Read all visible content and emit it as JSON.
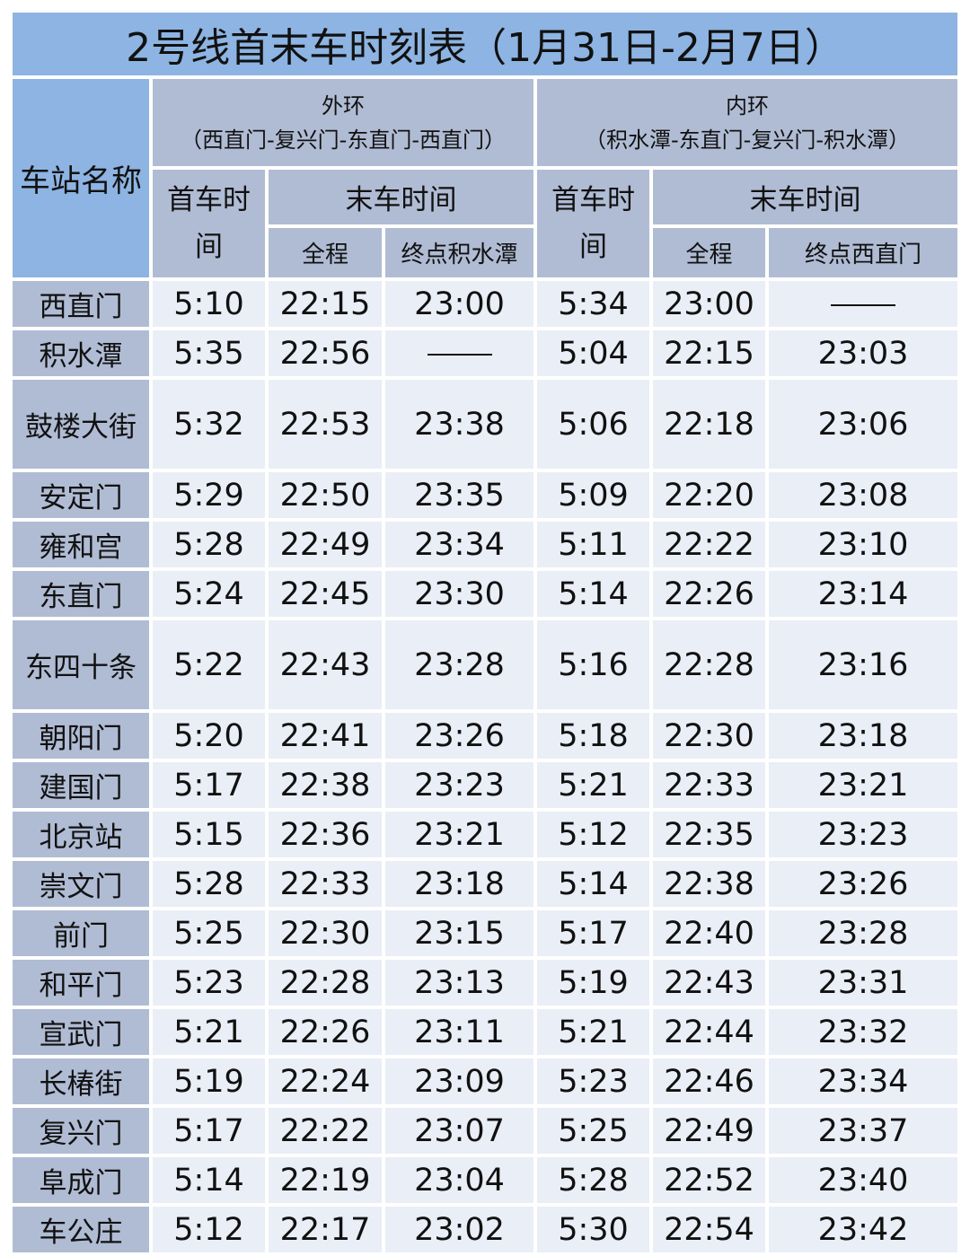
{
  "title": "2号线首末车时刻表（1月31日-2月7日）",
  "header": {
    "station_col": "车站名称",
    "outer": {
      "name": "外环",
      "route": "（西直门-复兴门-东直门-西直门）",
      "first": "首车时间",
      "last": "末车时间",
      "full": "全程",
      "terminal": "终点积水潭"
    },
    "inner": {
      "name": "内环",
      "route": "（积水潭-东直门-复兴门-积水潭）",
      "first": "首车时间",
      "last": "末车时间",
      "full": "全程",
      "terminal": "终点西直门"
    }
  },
  "rows": [
    {
      "station": "西直门",
      "o_first": "5:10",
      "o_full": "22:15",
      "o_term": "23:00",
      "i_first": "5:34",
      "i_full": "23:00",
      "i_term": "——",
      "tall": false
    },
    {
      "station": "积水潭",
      "o_first": "5:35",
      "o_full": "22:56",
      "o_term": "——",
      "i_first": "5:04",
      "i_full": "22:15",
      "i_term": "23:03",
      "tall": false
    },
    {
      "station": "鼓楼大街",
      "o_first": "5:32",
      "o_full": "22:53",
      "o_term": "23:38",
      "i_first": "5:06",
      "i_full": "22:18",
      "i_term": "23:06",
      "tall": true
    },
    {
      "station": "安定门",
      "o_first": "5:29",
      "o_full": "22:50",
      "o_term": "23:35",
      "i_first": "5:09",
      "i_full": "22:20",
      "i_term": "23:08",
      "tall": false
    },
    {
      "station": "雍和宫",
      "o_first": "5:28",
      "o_full": "22:49",
      "o_term": "23:34",
      "i_first": "5:11",
      "i_full": "22:22",
      "i_term": "23:10",
      "tall": false
    },
    {
      "station": "东直门",
      "o_first": "5:24",
      "o_full": "22:45",
      "o_term": "23:30",
      "i_first": "5:14",
      "i_full": "22:26",
      "i_term": "23:14",
      "tall": false
    },
    {
      "station": "东四十条",
      "o_first": "5:22",
      "o_full": "22:43",
      "o_term": "23:28",
      "i_first": "5:16",
      "i_full": "22:28",
      "i_term": "23:16",
      "tall": true
    },
    {
      "station": "朝阳门",
      "o_first": "5:20",
      "o_full": "22:41",
      "o_term": "23:26",
      "i_first": "5:18",
      "i_full": "22:30",
      "i_term": "23:18",
      "tall": false
    },
    {
      "station": "建国门",
      "o_first": "5:17",
      "o_full": "22:38",
      "o_term": "23:23",
      "i_first": "5:21",
      "i_full": "22:33",
      "i_term": "23:21",
      "tall": false
    },
    {
      "station": "北京站",
      "o_first": "5:15",
      "o_full": "22:36",
      "o_term": "23:21",
      "i_first": "5:12",
      "i_full": "22:35",
      "i_term": "23:23",
      "tall": false
    },
    {
      "station": "崇文门",
      "o_first": "5:28",
      "o_full": "22:33",
      "o_term": "23:18",
      "i_first": "5:14",
      "i_full": "22:38",
      "i_term": "23:26",
      "tall": false
    },
    {
      "station": "前门",
      "o_first": "5:25",
      "o_full": "22:30",
      "o_term": "23:15",
      "i_first": "5:17",
      "i_full": "22:40",
      "i_term": "23:28",
      "tall": false
    },
    {
      "station": "和平门",
      "o_first": "5:23",
      "o_full": "22:28",
      "o_term": "23:13",
      "i_first": "5:19",
      "i_full": "22:43",
      "i_term": "23:31",
      "tall": false
    },
    {
      "station": "宣武门",
      "o_first": "5:21",
      "o_full": "22:26",
      "o_term": "23:11",
      "i_first": "5:21",
      "i_full": "22:44",
      "i_term": "23:32",
      "tall": false
    },
    {
      "station": "长椿街",
      "o_first": "5:19",
      "o_full": "22:24",
      "o_term": "23:09",
      "i_first": "5:23",
      "i_full": "22:46",
      "i_term": "23:34",
      "tall": false
    },
    {
      "station": "复兴门",
      "o_first": "5:17",
      "o_full": "22:22",
      "o_term": "23:07",
      "i_first": "5:25",
      "i_full": "22:49",
      "i_term": "23:37",
      "tall": false
    },
    {
      "station": "阜成门",
      "o_first": "5:14",
      "o_full": "22:19",
      "o_term": "23:04",
      "i_first": "5:28",
      "i_full": "22:52",
      "i_term": "23:40",
      "tall": false
    },
    {
      "station": "车公庄",
      "o_first": "5:12",
      "o_full": "22:17",
      "o_term": "23:02",
      "i_first": "5:30",
      "i_full": "22:54",
      "i_term": "23:42",
      "tall": false
    }
  ],
  "colors": {
    "title_bg": "#8db4e2",
    "header_bg": "#b0bcd4",
    "cell_bg": "#eaeef6"
  }
}
